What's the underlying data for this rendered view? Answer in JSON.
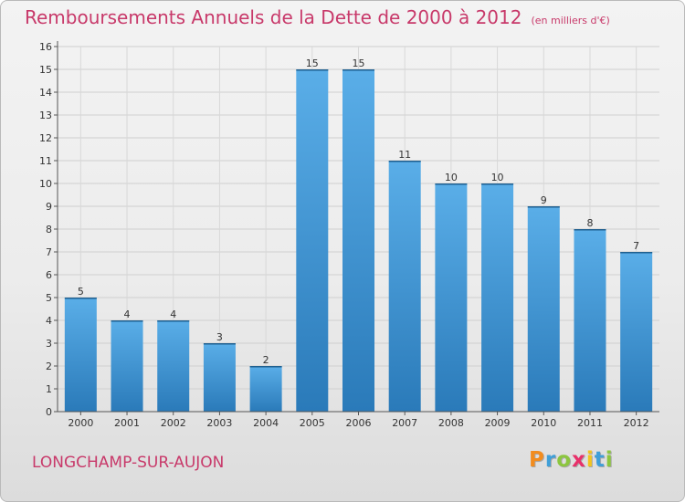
{
  "chart_data": {
    "type": "bar",
    "title": "Remboursements Annuels de la Dette de 2000 à 2012",
    "subtitle": "(en milliers d'€)",
    "categories": [
      "2000",
      "2001",
      "2002",
      "2003",
      "2004",
      "2005",
      "2006",
      "2007",
      "2008",
      "2009",
      "2010",
      "2011",
      "2012"
    ],
    "values": [
      5,
      4,
      4,
      3,
      2,
      15,
      15,
      11,
      10,
      10,
      9,
      8,
      7
    ],
    "ylim": [
      0,
      16
    ],
    "yticks": [
      0,
      1,
      2,
      3,
      4,
      5,
      6,
      7,
      8,
      9,
      10,
      11,
      12,
      13,
      14,
      15,
      16
    ],
    "xlabel": "",
    "ylabel": "",
    "grid": true,
    "colors": {
      "bar_top": "#5aaee8",
      "bar_bottom": "#2a7ab9",
      "title": "#c8396a"
    }
  },
  "commune": "LONGCHAMP-SUR-AUJON",
  "logo": {
    "letters": [
      "P",
      "r",
      "o",
      "x",
      "i",
      "t",
      "i"
    ],
    "colors": [
      "#f28c1e",
      "#3f9fd8",
      "#8cc63f",
      "#e8306a",
      "#f2c41e",
      "#3f9fd8",
      "#8cc63f"
    ]
  }
}
